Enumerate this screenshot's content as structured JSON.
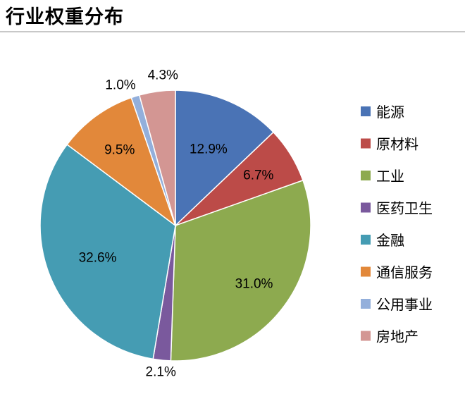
{
  "title": "行业权重分布",
  "chart_data": {
    "type": "pie",
    "title": "行业权重分布",
    "legend_position": "right",
    "start_angle": "12 o'clock, clockwise",
    "series": [
      {
        "name": "能源",
        "value": 12.9,
        "label": "12.9%",
        "color": "#4A73B5"
      },
      {
        "name": "原材料",
        "value": 6.7,
        "label": "6.7%",
        "color": "#BC4B48"
      },
      {
        "name": "工业",
        "value": 31.0,
        "label": "31.0%",
        "color": "#8DAA4F"
      },
      {
        "name": "医药卫生",
        "value": 2.1,
        "label": "2.1%",
        "color": "#7A599D"
      },
      {
        "name": "金融",
        "value": 32.6,
        "label": "32.6%",
        "color": "#459CB3"
      },
      {
        "name": "通信服务",
        "value": 9.5,
        "label": "9.5%",
        "color": "#E2883A"
      },
      {
        "name": "公用事业",
        "value": 1.0,
        "label": "1.0%",
        "color": "#93AFDB"
      },
      {
        "name": "房地产",
        "value": 4.3,
        "label": "4.3%",
        "color": "#D39693"
      }
    ]
  }
}
